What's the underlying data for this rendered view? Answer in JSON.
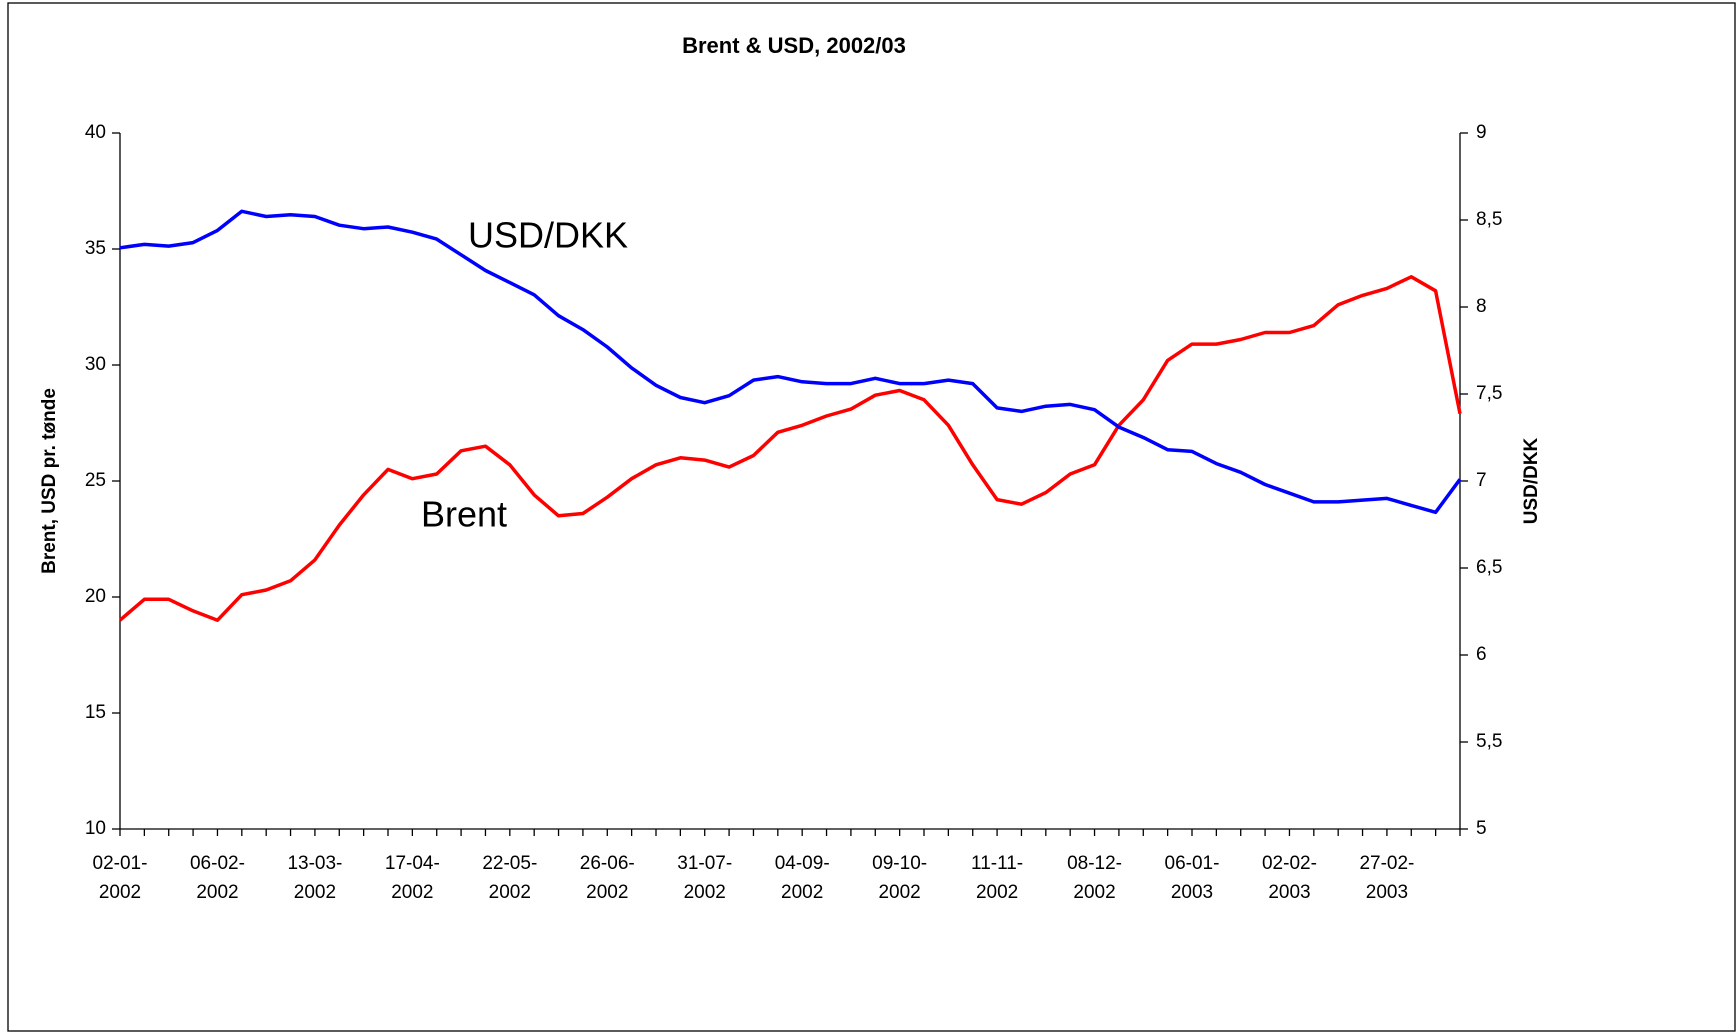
{
  "chart_data": {
    "type": "line",
    "title": "Brent & USD, 2002/03",
    "y_label": "Brent, USD pr. tønde",
    "y2_label": "USD/DKK",
    "categories": [
      "02-01-2002",
      null,
      null,
      null,
      "06-02-2002",
      null,
      null,
      null,
      "13-03-2002",
      null,
      null,
      null,
      "17-04-2002",
      null,
      null,
      null,
      "22-05-2002",
      null,
      null,
      null,
      "26-06-2002",
      null,
      null,
      null,
      "31-07-2002",
      null,
      null,
      null,
      "04-09-2002",
      null,
      null,
      null,
      "09-10-2002",
      null,
      null,
      null,
      "11-11-2002",
      null,
      null,
      null,
      "08-12-2002",
      null,
      null,
      null,
      "06-01-2003",
      null,
      null,
      null,
      "02-02-2003",
      null,
      null,
      null,
      "27-02-2003",
      null,
      null,
      null
    ],
    "series": [
      {
        "name": "Brent",
        "color": "#ff0000",
        "axis": "y",
        "values": [
          19.0,
          19.9,
          19.9,
          19.4,
          19.0,
          20.1,
          20.3,
          20.7,
          21.6,
          23.1,
          24.4,
          25.5,
          25.1,
          25.3,
          26.3,
          26.5,
          25.7,
          24.4,
          23.5,
          23.6,
          24.3,
          25.1,
          25.7,
          26.0,
          25.9,
          25.6,
          26.1,
          27.1,
          27.4,
          27.8,
          28.1,
          28.7,
          28.9,
          28.5,
          27.4,
          25.7,
          24.2,
          24.0,
          24.5,
          25.3,
          25.7,
          27.4,
          28.5,
          30.2,
          30.9,
          30.9,
          31.1,
          31.4,
          31.4,
          31.7,
          32.6,
          33.0,
          33.3,
          33.8,
          33.2,
          27.9
        ]
      },
      {
        "name": "USD/DKK",
        "color": "#0000ff",
        "axis": "y2",
        "values": [
          8.34,
          8.36,
          8.35,
          8.37,
          8.44,
          8.55,
          8.52,
          8.53,
          8.52,
          8.47,
          8.45,
          8.46,
          8.43,
          8.39,
          8.3,
          8.21,
          8.14,
          8.07,
          7.95,
          7.87,
          7.77,
          7.65,
          7.55,
          7.48,
          7.45,
          7.49,
          7.58,
          7.6,
          7.57,
          7.56,
          7.56,
          7.59,
          7.56,
          7.56,
          7.58,
          7.56,
          7.42,
          7.4,
          7.43,
          7.44,
          7.41,
          7.31,
          7.25,
          7.18,
          7.17,
          7.1,
          7.05,
          6.98,
          6.93,
          6.88,
          6.88,
          6.89,
          6.9,
          6.86,
          6.82,
          7.01
        ]
      }
    ],
    "ylim": [
      10,
      40
    ],
    "yticks": [
      10,
      15,
      20,
      25,
      30,
      35,
      40
    ],
    "y2lim": [
      5,
      9
    ],
    "y2ticks": [
      5,
      {
        "value": 5.5,
        "label": "5,5"
      },
      6,
      {
        "value": 6.5,
        "label": "6,5"
      },
      7,
      {
        "value": 7.5,
        "label": "7,5"
      },
      8,
      {
        "value": 8.5,
        "label": "8,5"
      },
      9
    ],
    "grid": false
  }
}
